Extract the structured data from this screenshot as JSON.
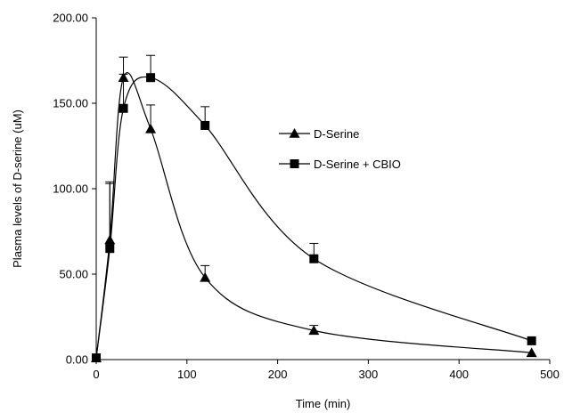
{
  "chart_data": {
    "type": "line",
    "title": "",
    "xlabel": "Time (min)",
    "ylabel": "Plasma levels of D-serine (uM)",
    "xlim": [
      0,
      500
    ],
    "ylim": [
      0,
      200
    ],
    "x_ticks": [
      0,
      100,
      200,
      300,
      400,
      500
    ],
    "x_tick_labels": [
      "0",
      "100",
      "200",
      "300",
      "400",
      "500"
    ],
    "y_ticks": [
      0,
      50,
      100,
      150,
      200
    ],
    "y_tick_labels": [
      "0.00",
      "50.00",
      "100.00",
      "150.00",
      "200.00"
    ],
    "grid": false,
    "legend_position": "right",
    "series": [
      {
        "name": "D-Serine",
        "marker": "triangle",
        "color": "#000000",
        "x": [
          0,
          15,
          30,
          60,
          120,
          240,
          480
        ],
        "y": [
          1.0,
          70.0,
          165.0,
          135.0,
          48.0,
          17.0,
          4.0
        ],
        "error": [
          0,
          33.0,
          12.0,
          14.0,
          7.0,
          3.0,
          0
        ]
      },
      {
        "name": "D-Serine + CBIO",
        "marker": "square",
        "color": "#000000",
        "x": [
          0,
          15,
          30,
          60,
          120,
          240,
          480
        ],
        "y": [
          1.0,
          65.0,
          147.0,
          165.0,
          137.0,
          59.0,
          11.0
        ],
        "error": [
          0,
          39.0,
          20.0,
          13.0,
          11.0,
          9.0,
          0
        ]
      }
    ]
  }
}
